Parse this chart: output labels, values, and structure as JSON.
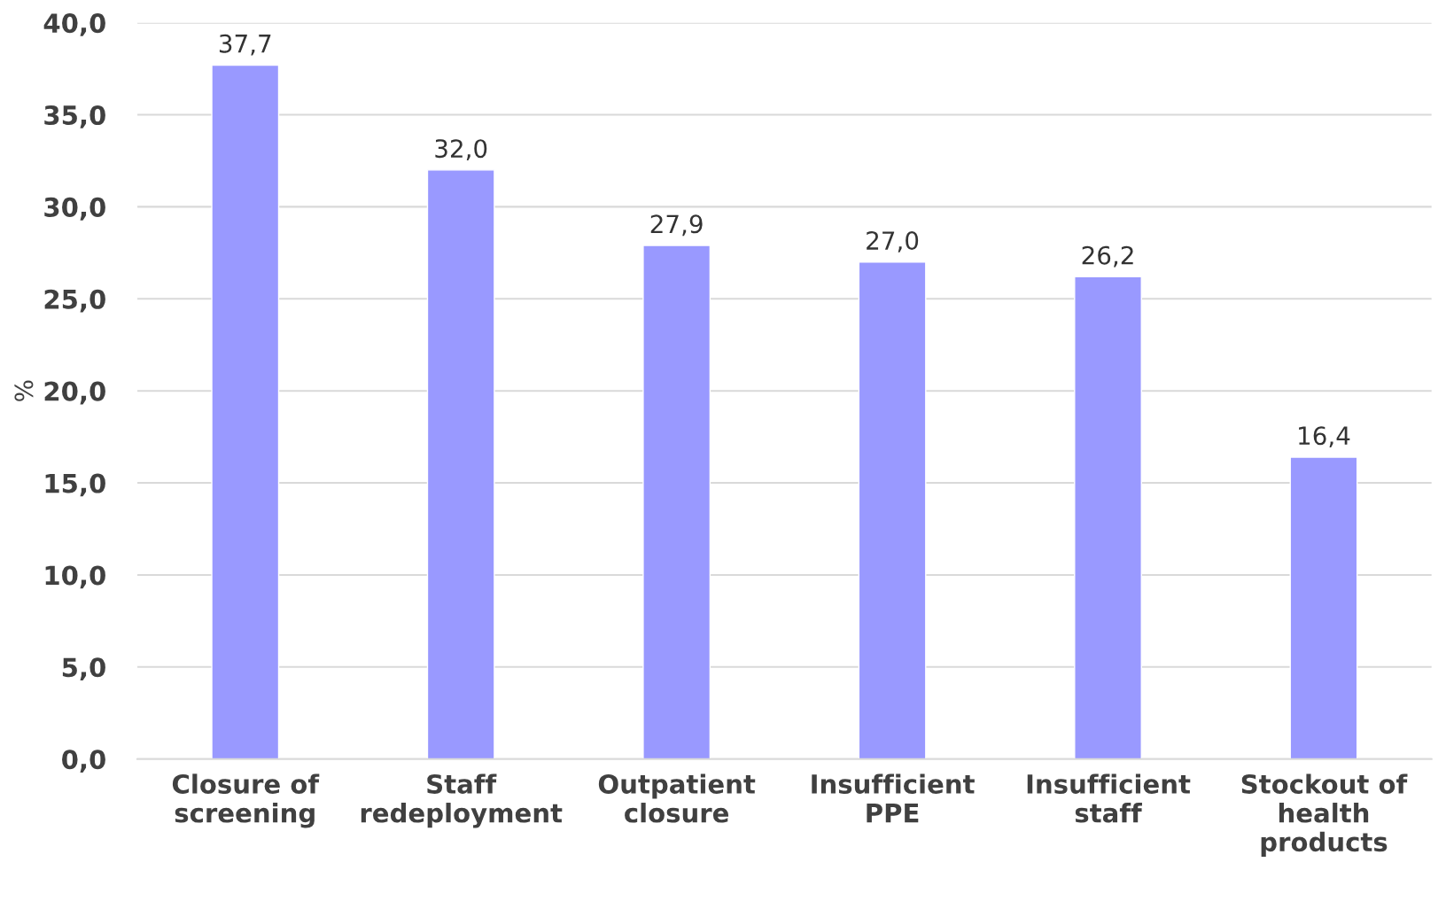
{
  "chart_data": {
    "type": "bar",
    "ylabel": "%",
    "categories": [
      "Closure of\nscreening",
      "Staff\nredeployment",
      "Outpatient\nclosure",
      "Insufficient\nPPE",
      "Insufficient\nstaff",
      "Stockout of\nhealth\nproducts"
    ],
    "values": [
      37.7,
      32.0,
      27.9,
      27.0,
      26.2,
      16.4
    ],
    "value_labels": [
      "37,7",
      "32,0",
      "27,9",
      "27,0",
      "26,2",
      "16,4"
    ],
    "color": "#9999ff",
    "ylim": [
      0,
      40
    ],
    "yticks": [
      {
        "value": 0,
        "label": "0,0"
      },
      {
        "value": 5,
        "label": "5,0"
      },
      {
        "value": 10,
        "label": "10,0"
      },
      {
        "value": 15,
        "label": "15,0"
      },
      {
        "value": 20,
        "label": "20,0"
      },
      {
        "value": 25,
        "label": "25,0"
      },
      {
        "value": 30,
        "label": "30,0"
      },
      {
        "value": 35,
        "label": "35,0"
      },
      {
        "value": 40,
        "label": "40,0"
      }
    ],
    "grid": "y"
  }
}
